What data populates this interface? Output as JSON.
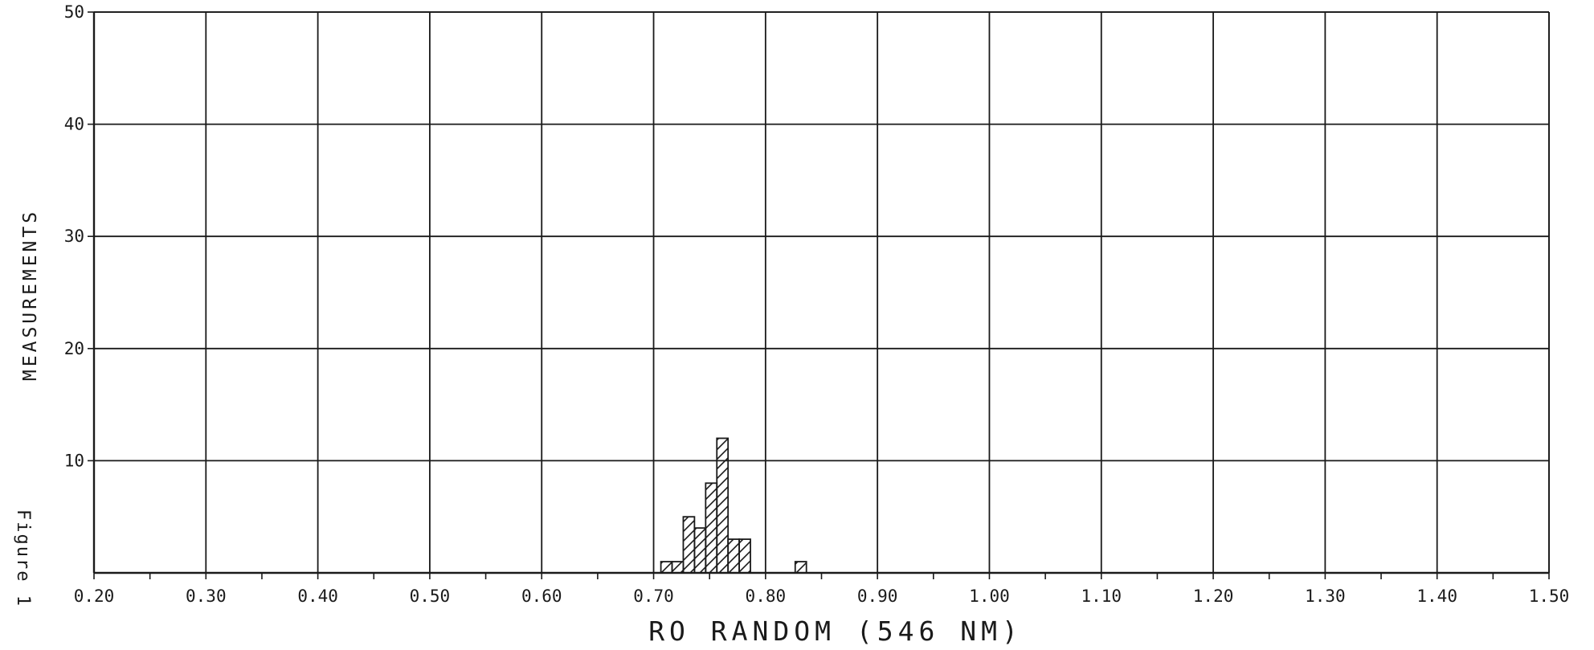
{
  "chart_data": {
    "type": "bar",
    "xlabel": "RO RANDOM (546 NM)",
    "ylabel": "MEASUREMENTS",
    "side_caption": "Figure 1",
    "xlim": [
      0.2,
      1.5
    ],
    "ylim": [
      0,
      50
    ],
    "x_ticks": [
      "0.20",
      "0.30",
      "0.40",
      "0.50",
      "0.60",
      "0.70",
      "0.80",
      "0.90",
      "1.00",
      "1.10",
      "1.20",
      "1.30",
      "1.40",
      "1.50"
    ],
    "y_ticks": [
      "10",
      "20",
      "30",
      "40",
      "50"
    ],
    "x_tick_values": [
      0.2,
      0.3,
      0.4,
      0.5,
      0.6,
      0.7,
      0.8,
      0.9,
      1.0,
      1.1,
      1.2,
      1.3,
      1.4,
      1.5
    ],
    "y_tick_values": [
      10,
      20,
      30,
      40,
      50
    ],
    "bin_width": 0.01,
    "bins": [
      {
        "x": 0.71,
        "value": 1
      },
      {
        "x": 0.72,
        "value": 1
      },
      {
        "x": 0.73,
        "value": 5
      },
      {
        "x": 0.74,
        "value": 4
      },
      {
        "x": 0.75,
        "value": 8
      },
      {
        "x": 0.76,
        "value": 12
      },
      {
        "x": 0.77,
        "value": 3
      },
      {
        "x": 0.78,
        "value": 3
      },
      {
        "x": 0.83,
        "value": 1
      }
    ],
    "grid": true,
    "fill_pattern": "diagonal-hatch",
    "colors": {
      "line": "#1a1a1a",
      "background": "#ffffff"
    }
  }
}
